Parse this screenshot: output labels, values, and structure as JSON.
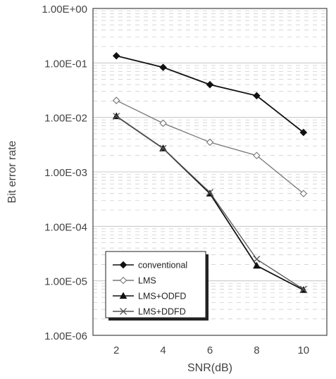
{
  "chart_data": {
    "type": "line",
    "title": "",
    "xlabel": "SNR(dB)",
    "ylabel": "Bit error rate",
    "y_scale": "log",
    "ylim": [
      1e-06,
      1
    ],
    "x": [
      2,
      4,
      6,
      8,
      10
    ],
    "x_tick_labels": [
      "2",
      "4",
      "6",
      "8",
      "10"
    ],
    "y_ticks": [
      1,
      0.1,
      0.01,
      0.001,
      0.0001,
      1e-05,
      1e-06
    ],
    "y_tick_labels": [
      "1.00E+00",
      "1.00E-01",
      "1.00E-02",
      "1.00E-03",
      "1.00E-04",
      "1.00E-05",
      "1.00E-06"
    ],
    "grid": true,
    "legend_position": "bottom-left",
    "series": [
      {
        "name": "conventional",
        "marker": "filled-diamond",
        "color": "#111111",
        "values": [
          0.135,
          0.083,
          0.04,
          0.025,
          0.0053
        ]
      },
      {
        "name": "LMS",
        "marker": "open-diamond",
        "color": "#777777",
        "values": [
          0.0205,
          0.0078,
          0.0035,
          0.002,
          0.0004
        ]
      },
      {
        "name": "LMS+ODFD",
        "marker": "filled-triangle",
        "color": "#111111",
        "values": [
          0.0105,
          0.0027,
          0.0004,
          1.9e-05,
          6.8e-06
        ]
      },
      {
        "name": "LMS+DDFD",
        "marker": "x",
        "color": "#555555",
        "values": [
          0.0105,
          0.0027,
          0.00042,
          2.5e-05,
          7e-06
        ]
      }
    ]
  }
}
